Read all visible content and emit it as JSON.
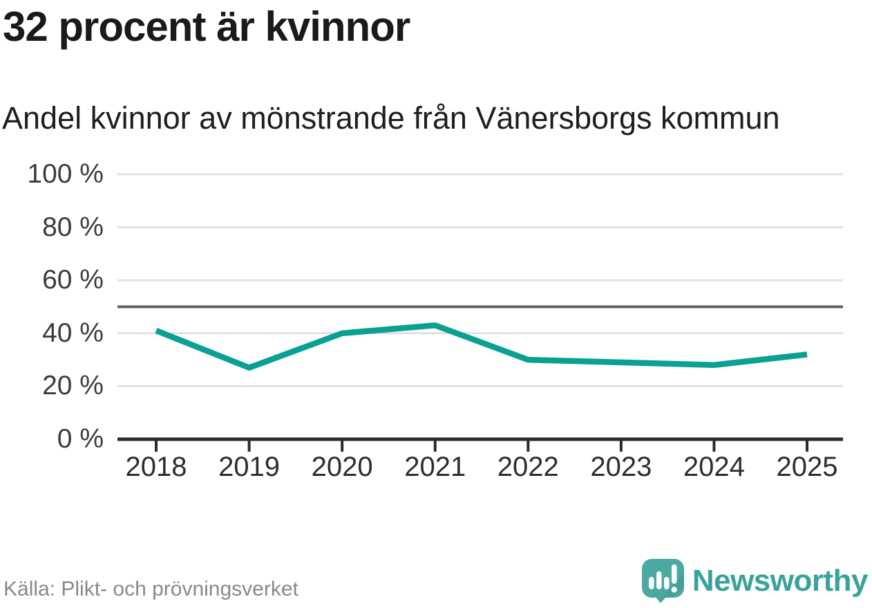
{
  "header": {
    "title": "32 procent är kvinnor",
    "subtitle": "Andel kvinnor av mönstrande från Vänersborgs kommun"
  },
  "chart_data": {
    "type": "line",
    "title": "32 procent är kvinnor",
    "subtitle": "Andel kvinnor av mönstrande från Vänersborgs kommun",
    "categories": [
      "2018",
      "2019",
      "2020",
      "2021",
      "2022",
      "2023",
      "2024",
      "2025"
    ],
    "series": [
      {
        "name": "Andel kvinnor av mönstrande",
        "values": [
          41,
          27,
          40,
          43,
          30,
          29,
          28,
          32
        ]
      }
    ],
    "unit": "%",
    "ylim": [
      0,
      100
    ],
    "yticks": [
      0,
      20,
      40,
      60,
      80,
      100
    ],
    "ytick_labels": [
      "0 %",
      "20 %",
      "40 %",
      "60 %",
      "80 %",
      "100 %"
    ],
    "reference_line": {
      "value": 50
    },
    "grid": "horizontal",
    "legend": "none"
  },
  "colors": {
    "line": "#0aa093",
    "reference_line": "#60606a",
    "gridline": "#dcdcdc",
    "axis": "#2b2b2b",
    "brand_icon": "#4ca9a2",
    "brand_text": "#3aa29a"
  },
  "footer": {
    "source": "Källa: Plikt- och prövningsverket",
    "brand": "Newsworthy"
  }
}
